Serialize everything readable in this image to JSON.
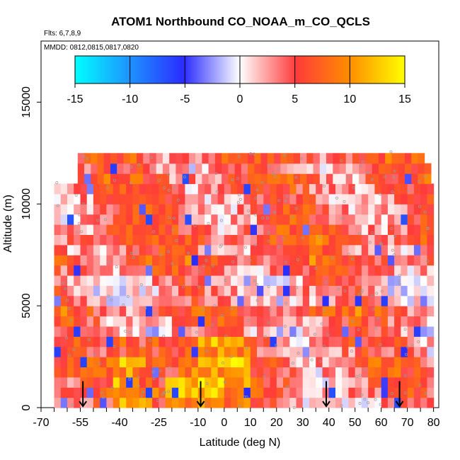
{
  "chart_data": {
    "type": "heatmap",
    "title": "ATOM1 Northbound CO_NOAA_m_CO_QCLS",
    "flights_note": "Flts: 6,7,8,9",
    "dates_note": "MMDD: 0812,0815,0817,0820",
    "xlabel": "Latitude (deg N)",
    "ylabel": "Altitude (m)",
    "xlim": [
      -70,
      82
    ],
    "ylim": [
      0,
      18000
    ],
    "x_tick_labels": [
      -70,
      -55,
      -40,
      -25,
      -10,
      0,
      10,
      20,
      30,
      40,
      50,
      60,
      70,
      80
    ],
    "y_tick_labels": [
      0,
      5000,
      10000,
      15000
    ],
    "colorbar": {
      "min": -15,
      "max": 15,
      "tick_labels": [
        -15,
        -10,
        -5,
        0,
        5,
        10,
        15
      ],
      "colors": [
        "#00ffff",
        "#1e90ff",
        "#2b2bff",
        "#ffffff",
        "#ff3b3b",
        "#ff8c00",
        "#ffff00"
      ]
    },
    "arrow_latitudes": [
      -54,
      -9,
      39,
      67
    ],
    "grid": false,
    "legend": "top"
  }
}
